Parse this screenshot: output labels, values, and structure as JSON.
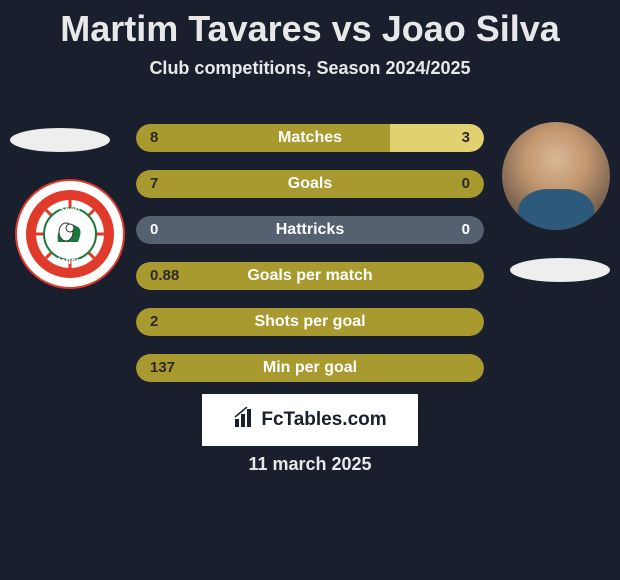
{
  "title": "Martim Tavares vs Joao Silva",
  "subtitle": "Club competitions, Season 2024/2025",
  "date": "11 march 2025",
  "brand": "FcTables.com",
  "colors": {
    "bar_left": "#a89a2f",
    "bar_right": "#e2d170",
    "bar_neutral": "#556070",
    "bar_left_text": "#2a2a2a",
    "bar_right_text": "#2a2a2a",
    "bg": "#1a1f2e"
  },
  "bars": [
    {
      "label": "Matches",
      "left_val": "8",
      "right_val": "3",
      "left_pct": 73,
      "right_pct": 27,
      "mode": "both"
    },
    {
      "label": "Goals",
      "left_val": "7",
      "right_val": "0",
      "left_pct": 100,
      "right_pct": 0,
      "mode": "full-left"
    },
    {
      "label": "Hattricks",
      "left_val": "0",
      "right_val": "0",
      "left_pct": 0,
      "right_pct": 0,
      "mode": "neutral"
    },
    {
      "label": "Goals per match",
      "left_val": "0.88",
      "right_val": "",
      "left_pct": 100,
      "right_pct": 0,
      "mode": "full-left"
    },
    {
      "label": "Shots per goal",
      "left_val": "2",
      "right_val": "",
      "left_pct": 100,
      "right_pct": 0,
      "mode": "full-left"
    },
    {
      "label": "Min per goal",
      "left_val": "137",
      "right_val": "",
      "left_pct": 100,
      "right_pct": 0,
      "mode": "full-left"
    }
  ],
  "badge": {
    "outer_text_top": "Club Sport Maritim",
    "outer_text_bottom": "Madeira",
    "ring_color": "#e03a2a",
    "inner_bg": "#ffffff",
    "accent": "#1a7a3e"
  }
}
